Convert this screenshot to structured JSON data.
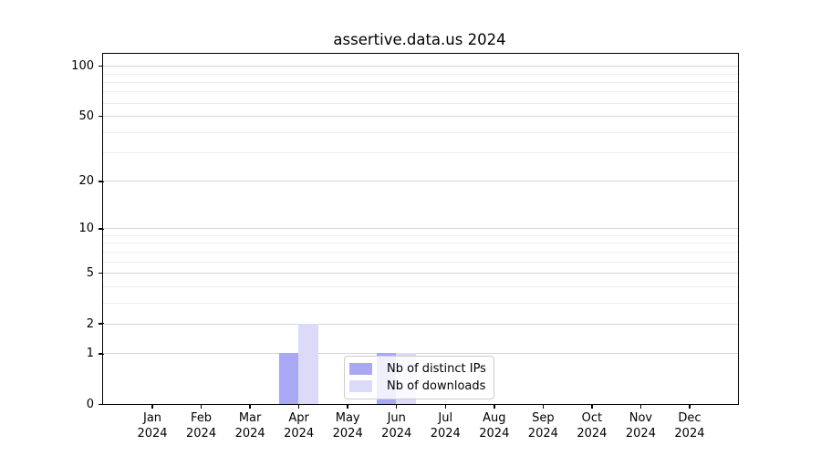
{
  "chart_data": {
    "type": "bar",
    "title": "assertive.data.us 2024",
    "categories": [
      "Jan",
      "Feb",
      "Mar",
      "Apr",
      "May",
      "Jun",
      "Jul",
      "Aug",
      "Sep",
      "Oct",
      "Nov",
      "Dec"
    ],
    "category_year": "2024",
    "series": [
      {
        "name": "Nb of distinct IPs",
        "color": "#a9a9f3",
        "values": [
          0,
          0,
          0,
          1,
          0,
          1,
          0,
          0,
          0,
          0,
          0,
          0
        ]
      },
      {
        "name": "Nb of downloads",
        "color": "#dbdbf9",
        "values": [
          0,
          0,
          0,
          2,
          0,
          1,
          0,
          0,
          0,
          0,
          0,
          0
        ]
      }
    ],
    "y_axis": {
      "scale": "log1p",
      "ticks": [
        0,
        1,
        2,
        5,
        10,
        20,
        50,
        100
      ],
      "minor_ticks": [
        3,
        4,
        6,
        7,
        8,
        9,
        30,
        40,
        60,
        70,
        80,
        90
      ],
      "ylim": [
        0,
        118
      ]
    },
    "legend": {
      "position": "lower-center",
      "labels": [
        "Nb of distinct IPs",
        "Nb of downloads"
      ]
    },
    "grid": true,
    "xlabel": "",
    "ylabel": ""
  }
}
